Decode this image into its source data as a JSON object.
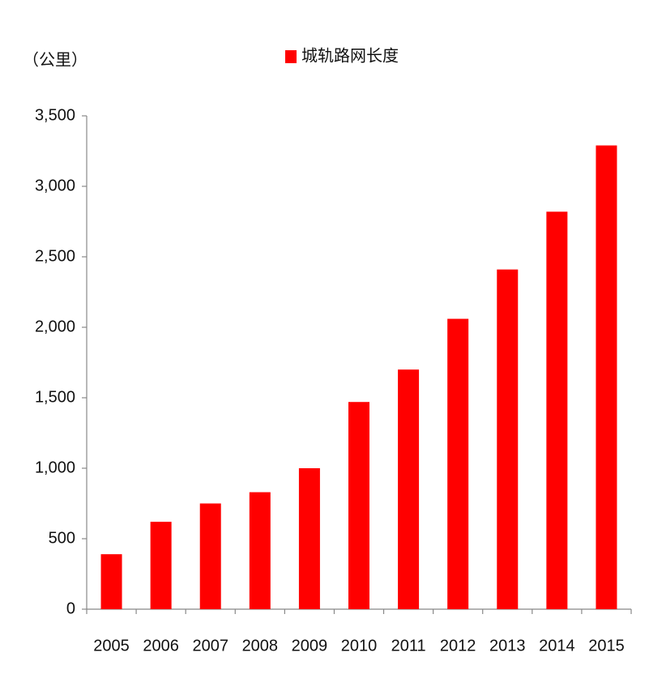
{
  "chart_data": {
    "type": "bar",
    "y_label": "（公里）",
    "categories": [
      "2005",
      "2006",
      "2007",
      "2008",
      "2009",
      "2010",
      "2011",
      "2012",
      "2013",
      "2014",
      "2015"
    ],
    "series": [
      {
        "name": "城轨路网长度",
        "color": "#ff0000",
        "values": [
          390,
          620,
          750,
          830,
          1000,
          1470,
          1700,
          2060,
          2410,
          2820,
          3290
        ]
      }
    ],
    "ylim": [
      0,
      3500
    ],
    "yticks": [
      0,
      500,
      {
        "value": 1000,
        "label": "1,000"
      },
      {
        "value": 1500,
        "label": "1,500"
      },
      {
        "value": 2000,
        "label": "2,000"
      },
      {
        "value": 2500,
        "label": "2,500"
      },
      {
        "value": 3000,
        "label": "3,000"
      },
      {
        "value": 3500,
        "label": "3,500"
      }
    ],
    "grid": false
  }
}
